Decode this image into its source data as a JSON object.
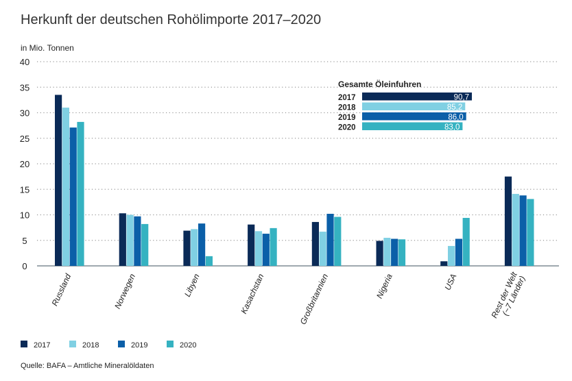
{
  "chart_data": {
    "type": "bar",
    "title": "Herkunft der deutschen Rohölimporte 2017–2020",
    "ylabel": "in Mio. Tonnen",
    "ylim": [
      0,
      40
    ],
    "yticks": [
      0,
      5,
      10,
      15,
      20,
      25,
      30,
      35,
      40
    ],
    "grid": true,
    "legend_position": "bottom-left",
    "categories": [
      "Russland",
      "Norwegen",
      "Libyen",
      "Kasachstan",
      "Großbritannien",
      "Nigeria",
      "USA",
      "Rest der Welt (~7 Länder)"
    ],
    "series": [
      {
        "name": "2017",
        "color": "#0a2a57",
        "values": [
          33.5,
          10.3,
          6.9,
          8.1,
          8.6,
          4.9,
          0.9,
          17.5
        ]
      },
      {
        "name": "2018",
        "color": "#80d0e3",
        "values": [
          31.0,
          10.0,
          7.2,
          6.8,
          6.7,
          5.5,
          3.9,
          14.1
        ]
      },
      {
        "name": "2019",
        "color": "#0b5fa8",
        "values": [
          27.1,
          9.7,
          8.3,
          6.3,
          10.2,
          5.3,
          5.3,
          13.8
        ]
      },
      {
        "name": "2020",
        "color": "#35b2c1",
        "values": [
          28.2,
          8.2,
          1.9,
          7.4,
          9.6,
          5.2,
          9.4,
          13.1
        ]
      }
    ],
    "inset": {
      "title": "Gesamte Öleinfuhren",
      "rows": [
        {
          "year": "2017",
          "value": 90.7,
          "label": "90,7"
        },
        {
          "year": "2018",
          "value": 85.2,
          "label": "85,2"
        },
        {
          "year": "2019",
          "value": 86.0,
          "label": "86,0"
        },
        {
          "year": "2020",
          "value": 83.0,
          "label": "83,0"
        }
      ]
    }
  },
  "source": "Quelle: BAFA – Amtliche Mineralöldaten"
}
